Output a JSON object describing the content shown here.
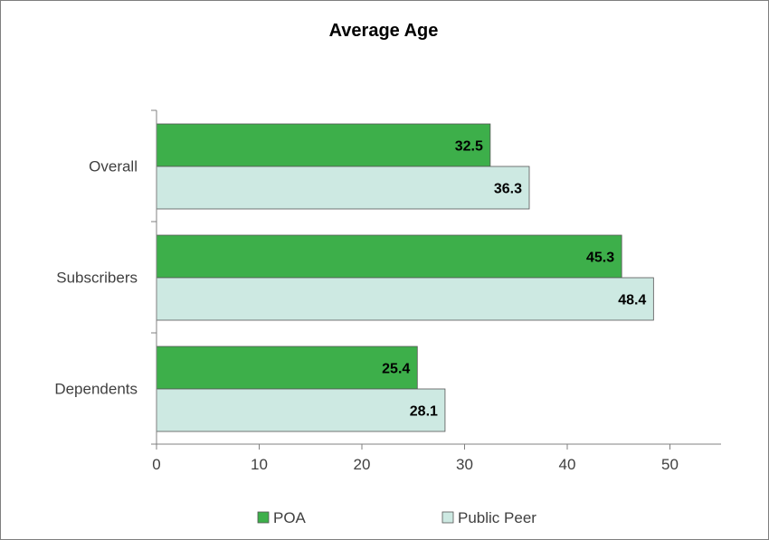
{
  "chart_data": {
    "type": "bar",
    "orientation": "horizontal",
    "title": "Average Age",
    "categories": [
      "Overall",
      "Subscribers",
      "Dependents"
    ],
    "series": [
      {
        "name": "POA",
        "values": [
          32.5,
          45.3,
          25.4
        ],
        "color": "#3daf4a",
        "label_color": "#000000"
      },
      {
        "name": "Public Peer",
        "values": [
          36.3,
          48.4,
          28.1
        ],
        "color": "#cde9e2",
        "label_color": "#000000"
      }
    ],
    "xlim": [
      0,
      55
    ],
    "xticks": [
      "0",
      "10",
      "20",
      "30",
      "40",
      "50"
    ],
    "grid": false,
    "legend": "bottom"
  }
}
